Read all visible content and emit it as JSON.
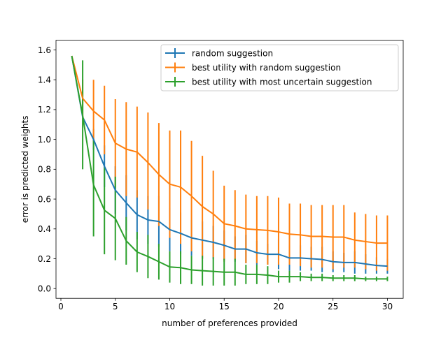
{
  "chart_data": {
    "type": "line",
    "title": "",
    "xlabel": "number of preferences provided",
    "ylabel": "error is predicted weights",
    "xlim": [
      -0.45,
      31.45
    ],
    "ylim": [
      -0.0655,
      1.665
    ],
    "xticks": [
      0,
      5,
      10,
      15,
      20,
      25,
      30
    ],
    "yticks": [
      0.0,
      0.2,
      0.4,
      0.6,
      0.8,
      1.0,
      1.2,
      1.4,
      1.6
    ],
    "xtick_labels": [
      "0",
      "5",
      "10",
      "15",
      "20",
      "25",
      "30"
    ],
    "ytick_labels": [
      "0.0",
      "0.2",
      "0.4",
      "0.6",
      "0.8",
      "1.0",
      "1.2",
      "1.4",
      "1.6"
    ],
    "grid": false,
    "legend_position": "top-right",
    "x": [
      1,
      2,
      3,
      4,
      5,
      6,
      7,
      8,
      9,
      10,
      11,
      12,
      13,
      14,
      15,
      16,
      17,
      18,
      19,
      20,
      21,
      22,
      23,
      24,
      25,
      26,
      27,
      28,
      29,
      30
    ],
    "series": [
      {
        "name": "random suggestion",
        "color": "#1f77b4",
        "values": [
          1.56,
          1.15,
          1.0,
          0.82,
          0.66,
          0.575,
          0.495,
          0.46,
          0.45,
          0.395,
          0.37,
          0.34,
          0.325,
          0.31,
          0.29,
          0.265,
          0.265,
          0.24,
          0.23,
          0.23,
          0.205,
          0.205,
          0.2,
          0.195,
          0.18,
          0.175,
          0.175,
          0.165,
          0.155,
          0.15
        ],
        "lower": [
          1.56,
          1.15,
          0.93,
          0.68,
          0.5,
          0.39,
          0.33,
          0.3,
          0.28,
          0.25,
          0.23,
          0.22,
          0.2,
          0.2,
          0.19,
          0.18,
          0.17,
          0.16,
          0.16,
          0.13,
          0.12,
          0.12,
          0.12,
          0.11,
          0.11,
          0.11,
          0.1,
          0.1,
          0.1,
          0.1
        ],
        "upper": [
          1.56,
          1.15,
          1.07,
          0.96,
          0.82,
          0.76,
          0.66,
          0.62,
          0.62,
          0.54,
          0.51,
          0.46,
          0.45,
          0.42,
          0.39,
          0.35,
          0.36,
          0.32,
          0.3,
          0.33,
          0.29,
          0.29,
          0.28,
          0.28,
          0.25,
          0.24,
          0.25,
          0.23,
          0.21,
          0.2
        ]
      },
      {
        "name": "best utility with random suggestion",
        "color": "#ff7f0e",
        "values": [
          1.56,
          1.275,
          1.19,
          1.13,
          0.975,
          0.935,
          0.915,
          0.845,
          0.765,
          0.7,
          0.68,
          0.62,
          0.55,
          0.5,
          0.435,
          0.42,
          0.4,
          0.395,
          0.39,
          0.38,
          0.365,
          0.36,
          0.35,
          0.35,
          0.345,
          0.345,
          0.325,
          0.315,
          0.305,
          0.305
        ],
        "lower": [
          1.56,
          1.15,
          0.98,
          0.9,
          0.68,
          0.62,
          0.61,
          0.53,
          0.42,
          0.34,
          0.3,
          0.25,
          0.2,
          0.21,
          0.18,
          0.19,
          0.17,
          0.17,
          0.16,
          0.16,
          0.16,
          0.15,
          0.14,
          0.14,
          0.13,
          0.14,
          0.14,
          0.13,
          0.12,
          0.12
        ],
        "upper": [
          1.56,
          1.4,
          1.4,
          1.36,
          1.27,
          1.25,
          1.22,
          1.18,
          1.11,
          1.06,
          1.06,
          0.99,
          0.89,
          0.79,
          0.69,
          0.66,
          0.63,
          0.62,
          0.62,
          0.61,
          0.57,
          0.57,
          0.56,
          0.56,
          0.56,
          0.56,
          0.51,
          0.5,
          0.49,
          0.49
        ]
      },
      {
        "name": "best utility with most uncertain suggestion",
        "color": "#2ca02c",
        "values": [
          1.56,
          1.16,
          0.695,
          0.525,
          0.47,
          0.32,
          0.245,
          0.215,
          0.18,
          0.145,
          0.14,
          0.125,
          0.12,
          0.115,
          0.11,
          0.11,
          0.095,
          0.095,
          0.09,
          0.08,
          0.08,
          0.08,
          0.075,
          0.075,
          0.07,
          0.07,
          0.07,
          0.065,
          0.065,
          0.065
        ],
        "lower": [
          1.56,
          0.8,
          0.35,
          0.23,
          0.19,
          0.16,
          0.11,
          0.07,
          0.06,
          0.04,
          0.03,
          0.03,
          0.02,
          0.02,
          0.02,
          0.02,
          0.03,
          0.03,
          0.03,
          0.04,
          0.04,
          0.05,
          0.05,
          0.05,
          0.05,
          0.05,
          0.05,
          0.05,
          0.05,
          0.05
        ],
        "upper": [
          1.56,
          1.53,
          1.0,
          0.82,
          0.75,
          0.48,
          0.38,
          0.36,
          0.3,
          0.25,
          0.25,
          0.22,
          0.22,
          0.21,
          0.2,
          0.2,
          0.16,
          0.16,
          0.15,
          0.12,
          0.12,
          0.11,
          0.1,
          0.1,
          0.09,
          0.09,
          0.09,
          0.08,
          0.08,
          0.08
        ]
      }
    ]
  }
}
